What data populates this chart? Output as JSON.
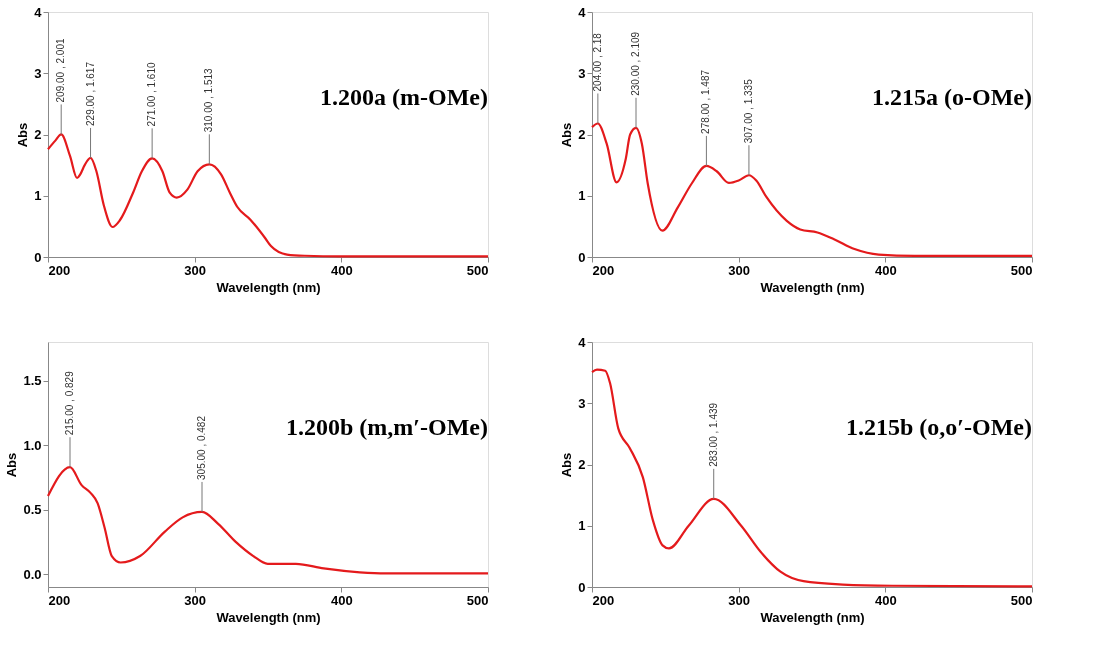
{
  "chart_data": [
    {
      "type": "line",
      "title": "1.200a (m-OMe)",
      "xlabel": "Wavelength (nm)",
      "ylabel": "Abs",
      "xlim": [
        200,
        500
      ],
      "xticks": [
        200,
        300,
        400,
        500
      ],
      "ylim": [
        0,
        4
      ],
      "yticks": [
        0,
        1,
        2,
        3,
        4
      ],
      "series": [
        {
          "color": "#e41a1c",
          "x": [
            200,
            205,
            209,
            215,
            219.8,
            222,
            225,
            229,
            233,
            238,
            244,
            249,
            258,
            264,
            271,
            278,
            283,
            287.8,
            295,
            302,
            310,
            318,
            324,
            329,
            338,
            348,
            352,
            363,
            375,
            400,
            500
          ],
          "values": [
            1.76,
            1.9,
            2.001,
            1.65,
            1.29,
            1.35,
            1.5,
            1.617,
            1.4,
            0.85,
            0.49,
            0.6,
            1.05,
            1.4,
            1.61,
            1.4,
            1.05,
            0.97,
            1.1,
            1.4,
            1.513,
            1.35,
            1.05,
            0.82,
            0.61,
            0.31,
            0.18,
            0.04,
            0.02,
            0.01,
            0.01
          ]
        }
      ],
      "annotations": [
        {
          "text": "209.00 , 2.001",
          "x": 209,
          "y": 2.001
        },
        {
          "text": "229.00 , 1.617",
          "x": 229,
          "y": 1.617
        },
        {
          "text": "271.00 , 1.610",
          "x": 271,
          "y": 1.61
        },
        {
          "text": "310.00 , 1.513",
          "x": 310,
          "y": 1.513
        }
      ]
    },
    {
      "type": "line",
      "title": "1.215a (o-OMe)",
      "xlabel": "Wavelength (nm)",
      "ylabel": "Abs",
      "xlim": [
        200,
        500
      ],
      "xticks": [
        200,
        300,
        400,
        500
      ],
      "ylim": [
        0,
        4
      ],
      "yticks": [
        0,
        1,
        2,
        3,
        4
      ],
      "series": [
        {
          "color": "#e41a1c",
          "x": [
            200,
            204,
            210,
            216.7,
            223,
            226,
            230,
            234,
            238,
            248,
            258.5,
            268,
            278,
            285,
            293.3,
            300,
            307,
            312,
            318.9,
            332.8,
            342,
            353.7,
            365,
            379,
            395.5,
            420,
            500
          ],
          "values": [
            2.12,
            2.18,
            1.85,
            1.22,
            1.6,
            2.0,
            2.109,
            1.85,
            1.2,
            0.43,
            0.81,
            1.2,
            1.487,
            1.4,
            1.21,
            1.25,
            1.335,
            1.25,
            0.98,
            0.59,
            0.45,
            0.4,
            0.29,
            0.13,
            0.04,
            0.02,
            0.02
          ]
        }
      ],
      "annotations": [
        {
          "text": "204.00 , 2.18",
          "x": 204,
          "y": 2.18
        },
        {
          "text": "230.00 , 2.109",
          "x": 230,
          "y": 2.109
        },
        {
          "text": "278.00 , 1.487",
          "x": 278,
          "y": 1.487
        },
        {
          "text": "307.00 , 1.335",
          "x": 307,
          "y": 1.335
        }
      ]
    },
    {
      "type": "line",
      "title": "1.200b (m,m′-OMe)",
      "xlabel": "Wavelength (nm)",
      "ylabel": "Abs",
      "xlim": [
        200,
        500
      ],
      "xticks": [
        200,
        300,
        400,
        500
      ],
      "ylim": [
        -0.1,
        1.8
      ],
      "yticks": [
        {
          "value": 0,
          "label": "0.0"
        },
        {
          "value": 0.5,
          "label": "0.5"
        },
        {
          "value": 1,
          "label": "1.0"
        },
        {
          "value": 1.5,
          "label": "1.5"
        }
      ],
      "series": [
        {
          "color": "#e41a1c",
          "x": [
            200,
            215,
            222.9,
            229,
            233.8,
            238.6,
            243.5,
            249.5,
            262.8,
            279.7,
            291.8,
            305,
            316,
            328,
            340,
            349.8,
            369,
            388,
            412.6,
            430,
            500
          ],
          "values": [
            0.605,
            0.829,
            0.69,
            0.63,
            0.55,
            0.36,
            0.14,
            0.09,
            0.14,
            0.33,
            0.44,
            0.482,
            0.39,
            0.25,
            0.14,
            0.08,
            0.08,
            0.044,
            0.014,
            0.005,
            0.005
          ]
        }
      ],
      "annotations": [
        {
          "text": "215.00 , 0.829",
          "x": 215,
          "y": 0.829
        },
        {
          "text": "305.00 , 0.482",
          "x": 305,
          "y": 0.482
        }
      ]
    },
    {
      "type": "line",
      "title": "1.215b (o,o′-OMe)",
      "xlabel": "Wavelength (nm)",
      "ylabel": "Abs",
      "xlim": [
        200,
        500
      ],
      "xticks": [
        200,
        300,
        400,
        500
      ],
      "ylim": [
        0,
        4
      ],
      "yticks": [
        0,
        1,
        2,
        3,
        4
      ],
      "series": [
        {
          "color": "#e41a1c",
          "x": [
            200,
            203.4,
            209,
            212.3,
            217.9,
            225.7,
            234.7,
            241.4,
            248.1,
            252.5,
            265.9,
            283,
            301.7,
            315.1,
            328.5,
            344.2,
            371,
            404.6,
            500
          ],
          "values": [
            3.51,
            3.55,
            3.53,
            3.33,
            2.59,
            2.27,
            1.79,
            1.1,
            0.68,
            0.63,
            1.0,
            1.439,
            1.0,
            0.57,
            0.25,
            0.095,
            0.04,
            0.02,
            0.01
          ]
        }
      ],
      "annotations": [
        {
          "text": "283.00 , 1.439",
          "x": 283,
          "y": 1.439
        }
      ]
    }
  ]
}
